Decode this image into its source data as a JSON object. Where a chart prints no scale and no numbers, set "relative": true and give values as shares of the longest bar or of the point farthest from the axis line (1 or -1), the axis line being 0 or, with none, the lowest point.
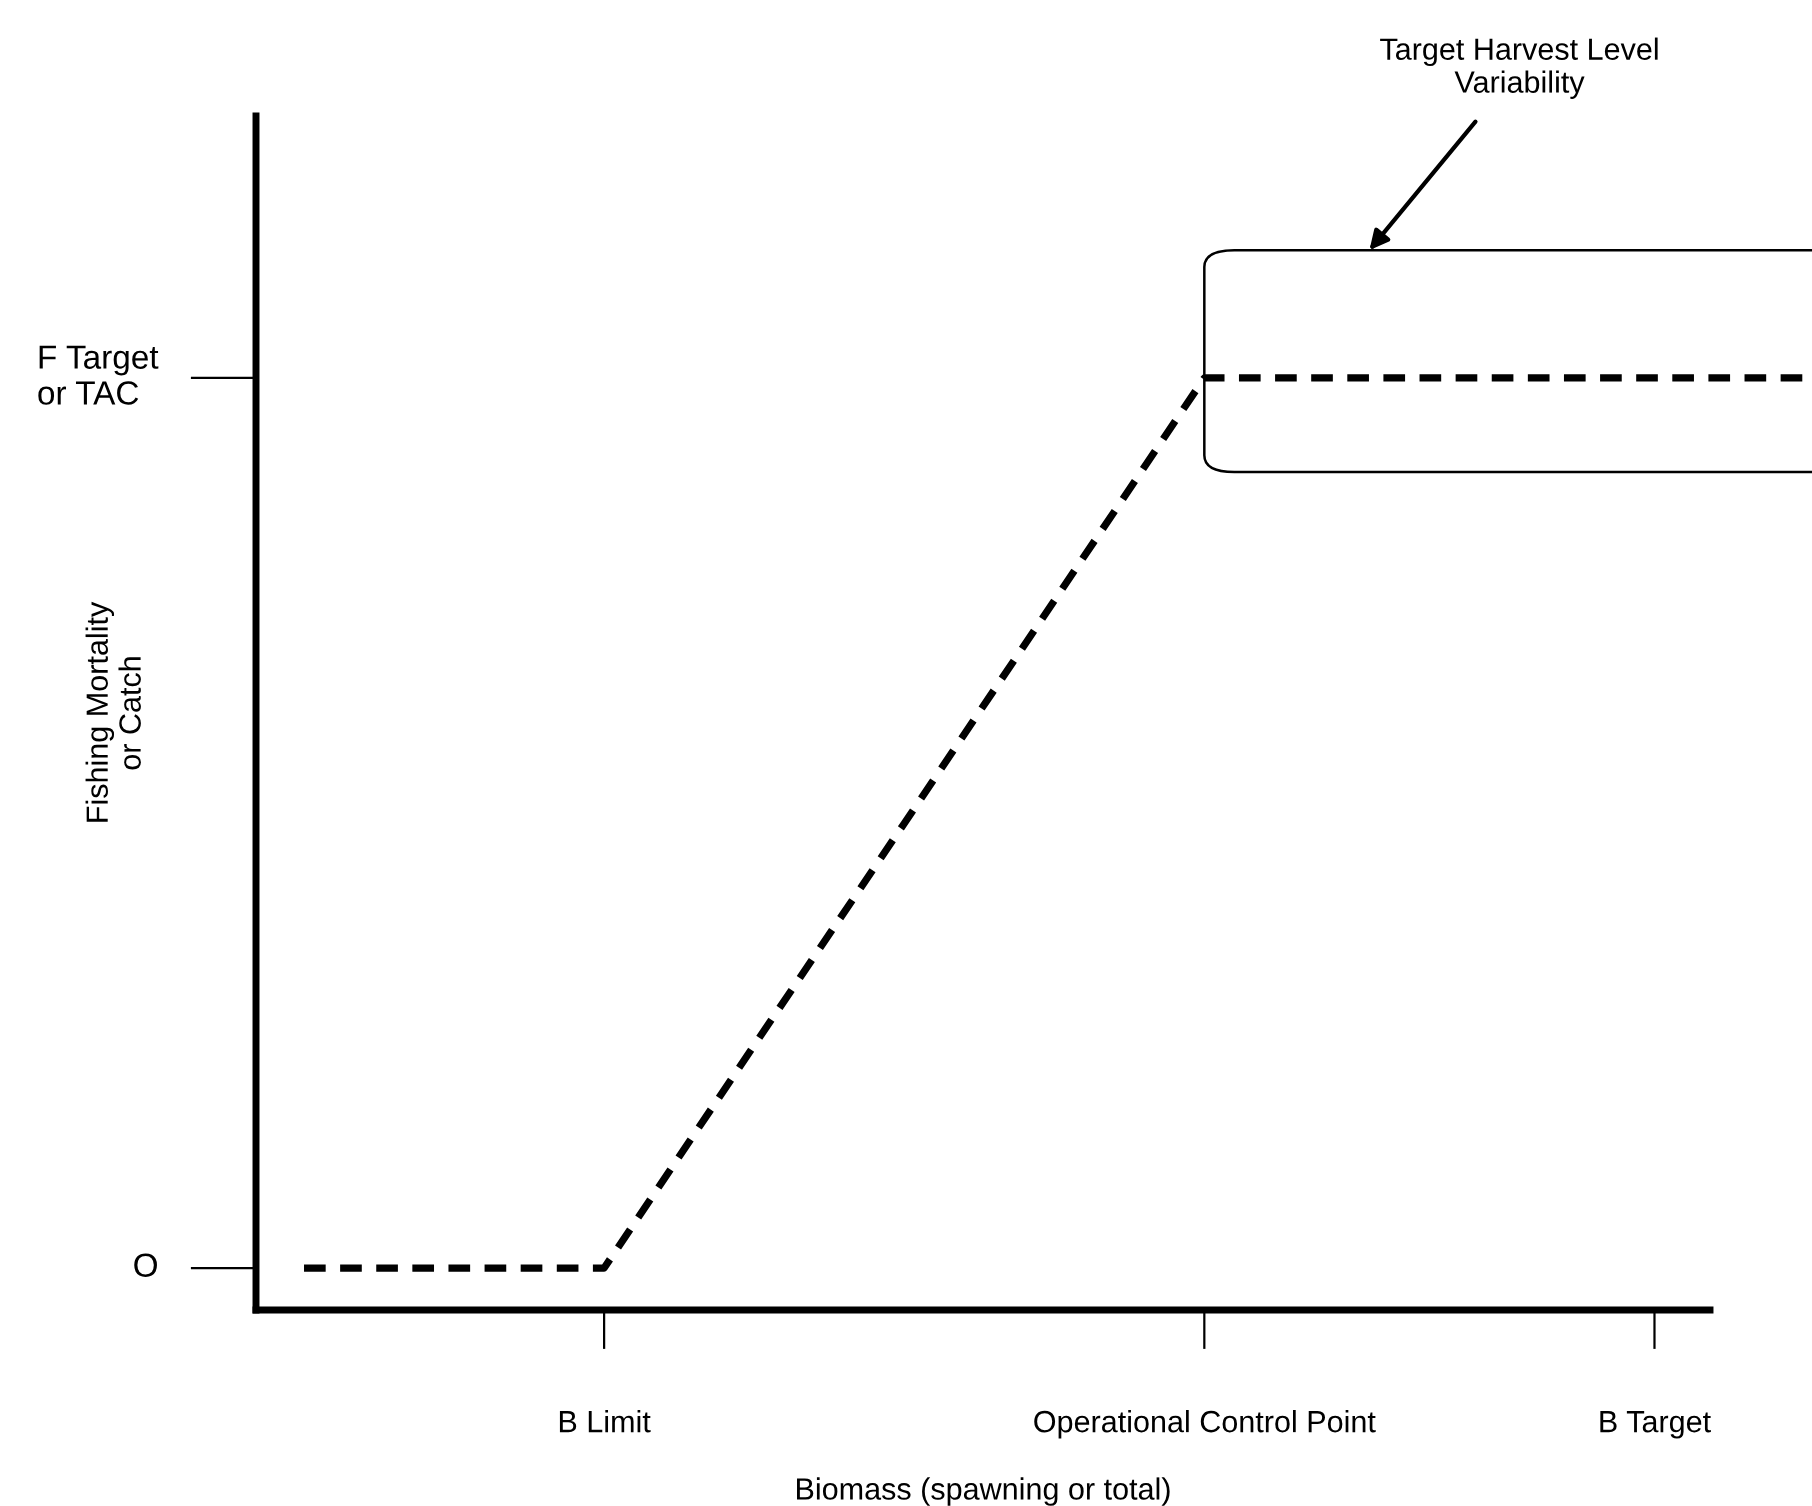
{
  "chart_data": {
    "type": "line",
    "relative": true,
    "xlabel": "Biomass (spawning or total)",
    "ylabel": "Fishing Mortality\nor Catch",
    "categories": [
      null,
      null,
      "B Limit",
      null,
      null,
      null,
      "Operational Control Point",
      null,
      null,
      "B Target",
      null
    ],
    "series": [
      {
        "color": "#000000",
        "values": [
          0.045,
          0.045,
          0.045,
          0.284,
          0.522,
          0.761,
          1,
          1,
          1,
          1,
          1
        ]
      }
    ],
    "line_style": "dashed",
    "marker": "none",
    "grid": false,
    "ref_lines": [
      {
        "axis": "y",
        "value": 0.045,
        "label": "O"
      },
      {
        "axis": "y",
        "value": 1,
        "label": "F Target\nor TAC"
      }
    ],
    "bands": [
      {
        "axis": "y",
        "from": 0.899,
        "to": 1.137,
        "label": "Target Harvest Level\nVariability",
        "color": "#ffffff"
      }
    ]
  }
}
